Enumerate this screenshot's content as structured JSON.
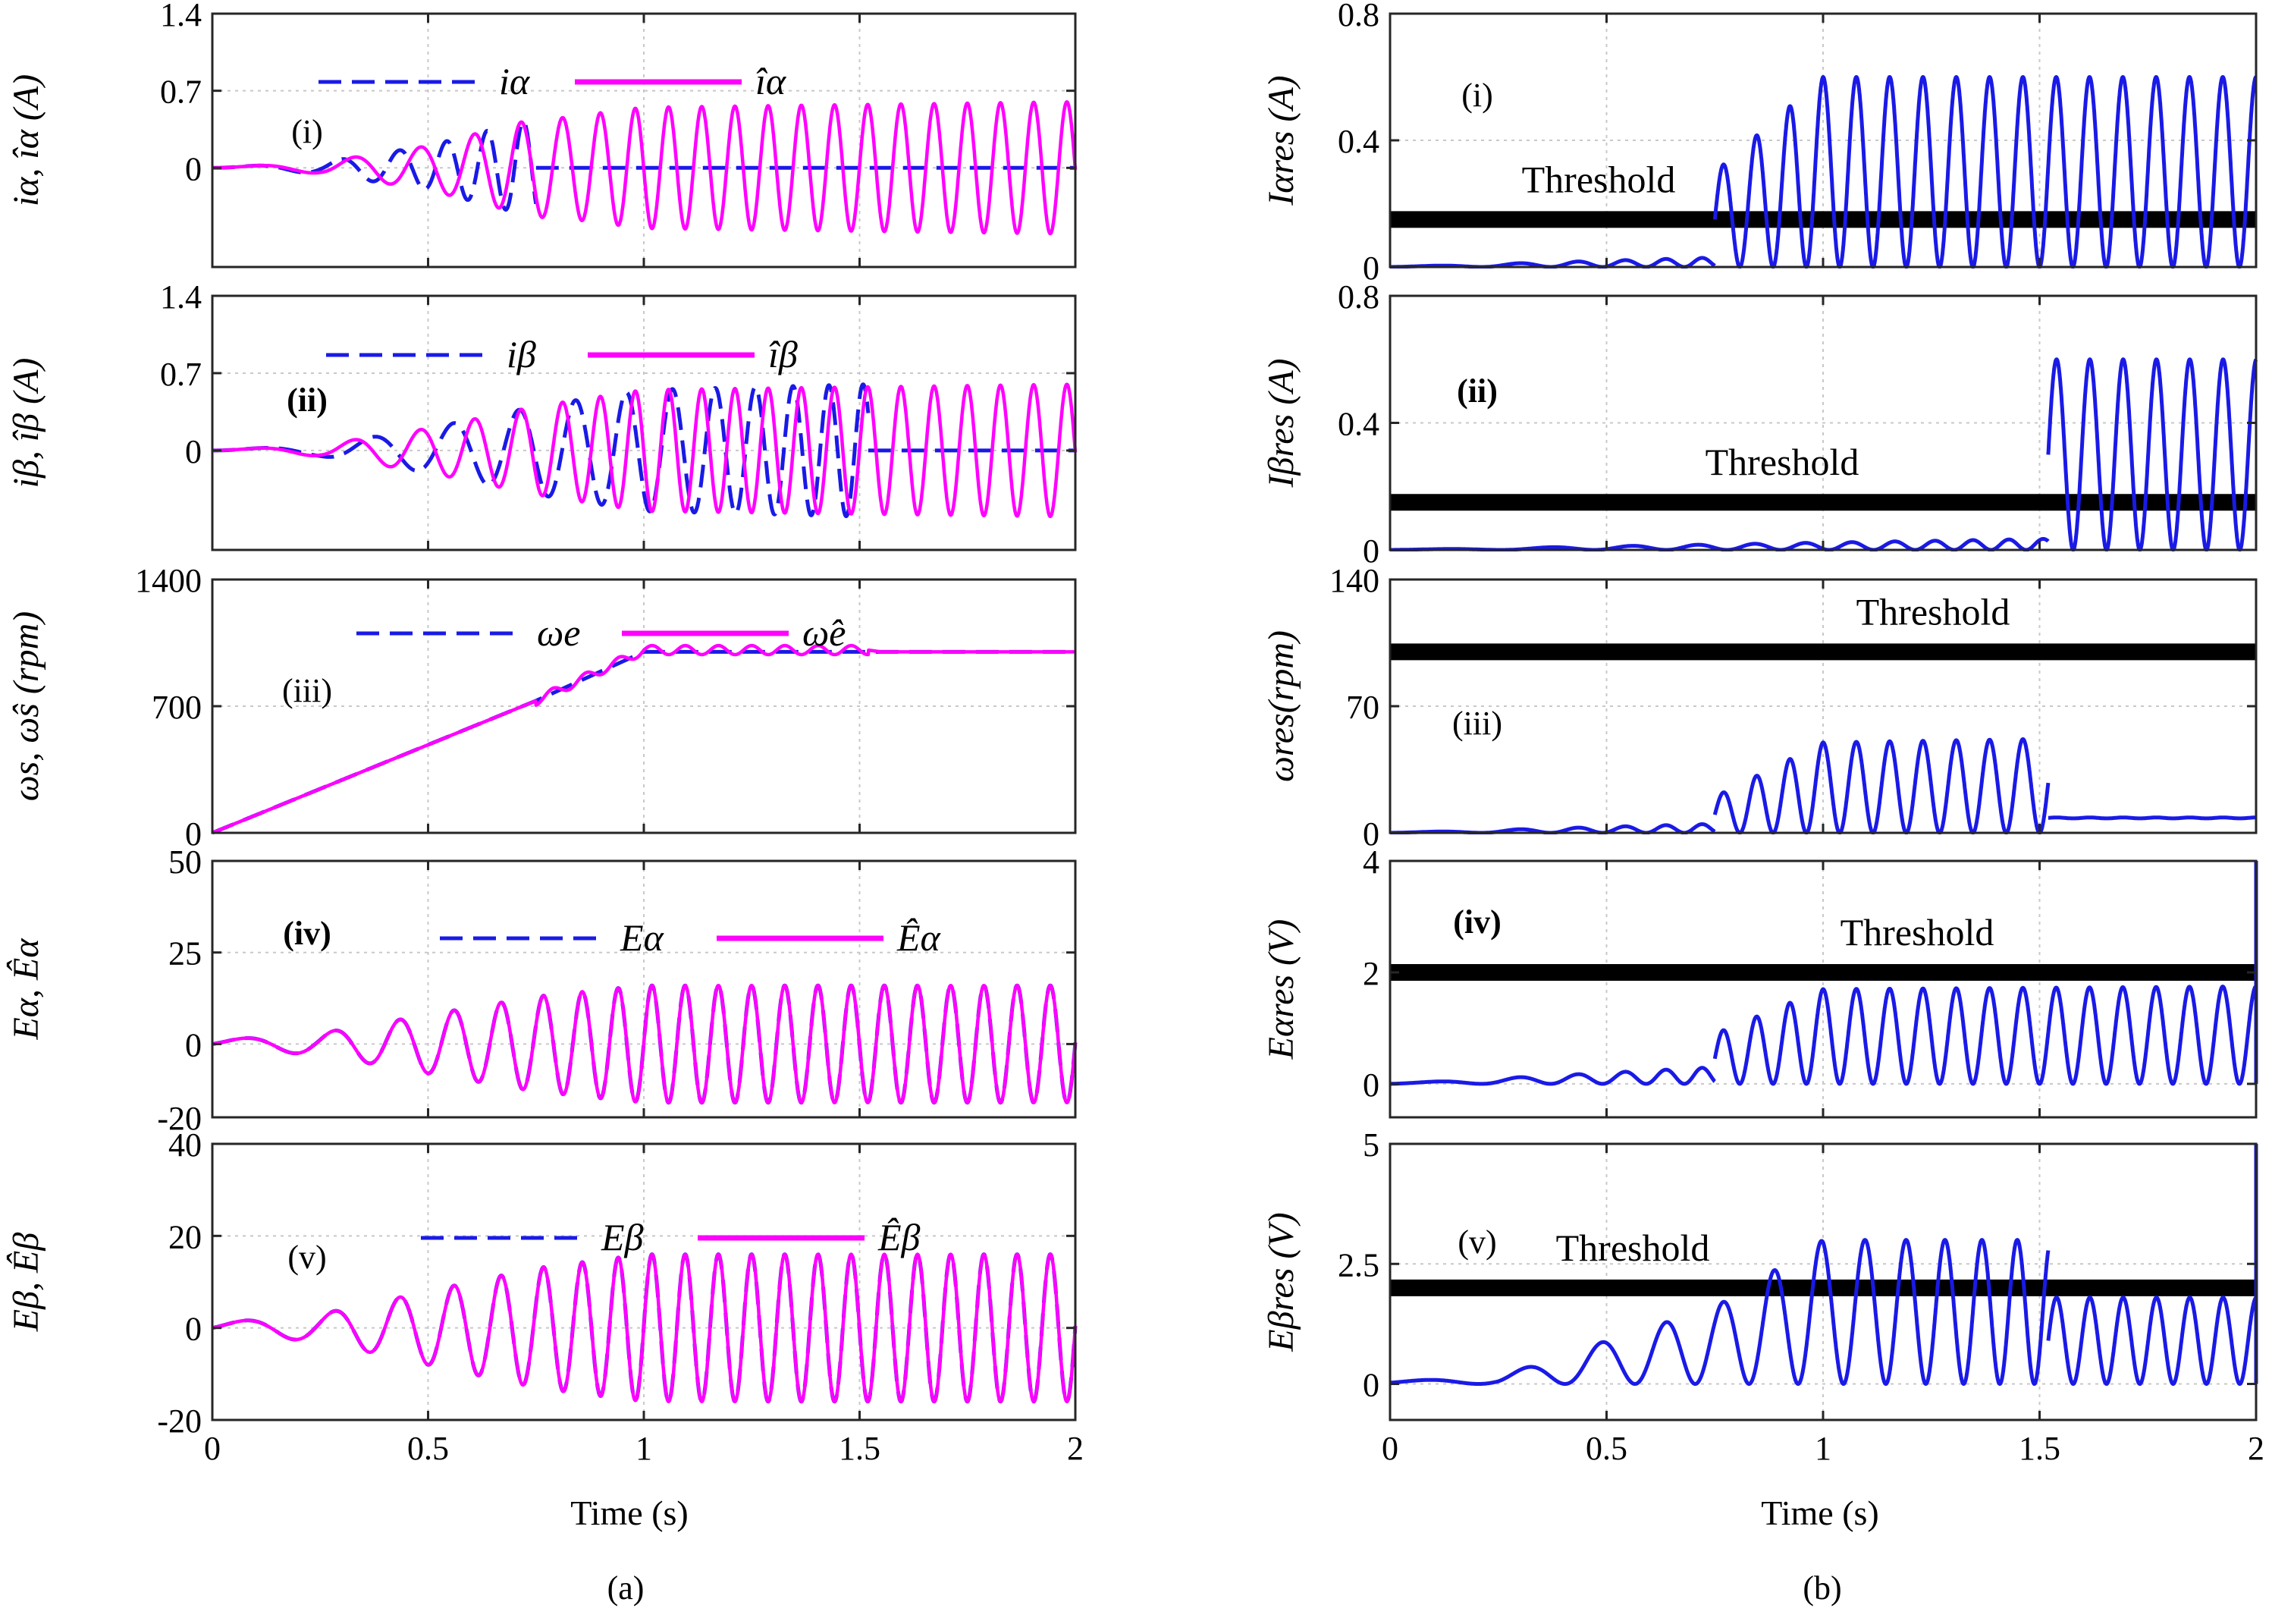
{
  "figure": {
    "caption_a": "(a)",
    "caption_b": "(b)",
    "time_label": "Time (s)",
    "x_ticks": [
      "0",
      "0.5",
      "1",
      "1.5",
      "2"
    ]
  },
  "chart_data": [
    {
      "id": "a1",
      "type": "line",
      "column": "a",
      "row": 0,
      "panel_label": "(i)",
      "ylabel": "iα, îα (A)",
      "ylim": [
        -0.9,
        1.4
      ],
      "yticks": [
        0,
        0.7,
        1.4
      ],
      "xlim": [
        0,
        2
      ],
      "grid": true,
      "legend": "top",
      "series": [
        {
          "name": "iα",
          "style": "dashed",
          "color": "#1a1ae6",
          "segments": [
            {
              "t": [
                0,
                0.75
              ],
              "amp_t": [
                0,
                0.25,
                0.5,
                0.75
              ],
              "amp": [
                0.0,
                0.05,
                0.2,
                0.45
              ],
              "freq": [
                2,
                13
              ]
            },
            {
              "t": [
                0.75,
                2.0
              ],
              "amp_t": [
                0.75,
                2.0
              ],
              "amp": [
                0.0,
                0.0
              ],
              "freq": [
                13,
                13
              ]
            }
          ]
        },
        {
          "name": "îα",
          "style": "solid",
          "color": "#ff00ff",
          "segments": [
            {
              "t": [
                0,
                2.0
              ],
              "amp_t": [
                0,
                0.25,
                0.5,
                0.75,
                0.8,
                1.0,
                2.0
              ],
              "amp": [
                0.0,
                0.05,
                0.2,
                0.45,
                0.45,
                0.55,
                0.6
              ],
              "freq": [
                2,
                13,
                13
              ]
            }
          ]
        }
      ]
    },
    {
      "id": "a2",
      "type": "line",
      "column": "a",
      "row": 1,
      "panel_label": "(ii)",
      "ylabel": "iβ, îβ (A)",
      "ylim": [
        -0.9,
        1.4
      ],
      "yticks": [
        0,
        0.7,
        1.4
      ],
      "xlim": [
        0,
        2
      ],
      "grid": true,
      "legend": "top",
      "series": [
        {
          "name": "iβ",
          "style": "dashed",
          "color": "#1a1ae6",
          "segments": [
            {
              "t": [
                0,
                1.52
              ],
              "amp_t": [
                0,
                0.25,
                0.5,
                0.75,
                1.0,
                1.52
              ],
              "amp": [
                0.0,
                0.05,
                0.2,
                0.4,
                0.55,
                0.6
              ],
              "freq": [
                2,
                13
              ]
            },
            {
              "t": [
                1.52,
                2.0
              ],
              "amp_t": [
                1.52,
                2.0
              ],
              "amp": [
                0.0,
                0.0
              ],
              "freq": [
                13,
                13
              ]
            }
          ]
        },
        {
          "name": "îβ",
          "style": "solid",
          "color": "#ff00ff",
          "segments": [
            {
              "t": [
                0,
                2.0
              ],
              "amp_t": [
                0,
                0.25,
                0.5,
                0.75,
                1.0,
                2.0
              ],
              "amp": [
                0.0,
                0.05,
                0.2,
                0.4,
                0.55,
                0.6
              ],
              "freq": [
                2,
                13,
                13
              ]
            }
          ]
        }
      ]
    },
    {
      "id": "a3",
      "type": "line",
      "column": "a",
      "row": 2,
      "panel_label": "(iii)",
      "ylabel": "ωs, ω̂s (rpm)",
      "ylim": [
        0,
        1400
      ],
      "yticks": [
        0,
        700,
        1400
      ],
      "xlim": [
        0,
        2
      ],
      "grid": true,
      "legend": "top",
      "series": [
        {
          "name": "ωe",
          "style": "dashed",
          "color": "#1a1ae6",
          "points": [
            [
              0,
              0
            ],
            [
              0.75,
              730
            ],
            [
              1.0,
              1000
            ],
            [
              2.0,
              1000
            ]
          ]
        },
        {
          "name": "ω̂e",
          "style": "solid",
          "color": "#ff00ff",
          "points": [
            [
              0,
              0
            ],
            [
              0.75,
              730
            ],
            [
              1.0,
              1010
            ],
            [
              1.52,
              1010
            ],
            [
              1.55,
              1000
            ],
            [
              2.0,
              1000
            ]
          ],
          "ripple": {
            "t": [
              0.75,
              1.52
            ],
            "amp": 25,
            "freq": 13
          }
        }
      ]
    },
    {
      "id": "a4",
      "type": "line",
      "column": "a",
      "row": 3,
      "panel_label": "(iv)",
      "ylabel": "Eα, Êα",
      "ylim": [
        -20,
        50
      ],
      "yticks": [
        -20,
        0,
        25,
        50
      ],
      "xlim": [
        0,
        2
      ],
      "grid": true,
      "legend": "top",
      "series": [
        {
          "name": "Eα",
          "style": "dashed",
          "color": "#1a1ae6",
          "segments": [
            {
              "t": [
                0,
                2.0
              ],
              "amp_t": [
                0,
                0.25,
                0.5,
                0.75,
                1.0,
                2.0
              ],
              "amp": [
                1,
                3,
                8,
                13,
                16,
                16
              ],
              "freq": [
                3,
                13,
                13
              ]
            }
          ]
        },
        {
          "name": "Êα",
          "style": "solid",
          "color": "#ff00ff",
          "segments": [
            {
              "t": [
                0,
                2.0
              ],
              "amp_t": [
                0,
                0.25,
                0.5,
                0.75,
                1.0,
                2.0
              ],
              "amp": [
                1,
                3,
                8,
                13,
                16,
                16
              ],
              "freq": [
                3,
                13,
                13
              ]
            }
          ]
        }
      ]
    },
    {
      "id": "a5",
      "type": "line",
      "column": "a",
      "row": 4,
      "panel_label": "(v)",
      "ylabel": "Eβ, Êβ",
      "ylim": [
        -20,
        40
      ],
      "yticks": [
        -20,
        0,
        20,
        40
      ],
      "xlim": [
        0,
        2
      ],
      "grid": true,
      "legend": "top",
      "series": [
        {
          "name": "Eβ",
          "style": "dashed",
          "color": "#1a1ae6",
          "segments": [
            {
              "t": [
                0,
                2.0
              ],
              "amp_t": [
                0,
                0.25,
                0.5,
                0.75,
                1.0,
                2.0
              ],
              "amp": [
                1,
                3,
                8,
                13,
                16,
                16
              ],
              "freq": [
                3,
                13,
                13
              ]
            }
          ]
        },
        {
          "name": "Êβ",
          "style": "solid",
          "color": "#ff00ff",
          "segments": [
            {
              "t": [
                0,
                2.0
              ],
              "amp_t": [
                0,
                0.25,
                0.5,
                0.75,
                1.0,
                2.0
              ],
              "amp": [
                1,
                3,
                8,
                13,
                16,
                16
              ],
              "freq": [
                3,
                13,
                13
              ]
            }
          ]
        }
      ]
    },
    {
      "id": "b1",
      "type": "line",
      "column": "b",
      "row": 0,
      "panel_label": "(i)",
      "ylabel": "Iαres (A)",
      "ylim": [
        0,
        0.8
      ],
      "yticks": [
        0,
        0.4,
        0.8
      ],
      "xlim": [
        0,
        2
      ],
      "grid": true,
      "threshold": {
        "label": "Threshold",
        "value": 0.15
      },
      "series": [
        {
          "name": "Iαres",
          "color": "#1a1ae6",
          "residual": [
            {
              "t": [
                0,
                0.75
              ],
              "base": [
                0.0,
                0.0
              ],
              "amp": [
                0.0,
                0.03
              ],
              "freq": [
                2,
                13
              ]
            },
            {
              "t": [
                0.75,
                2.0
              ],
              "base": [
                0.0,
                0.0
              ],
              "amp_t": [
                0.75,
                1.0,
                2.0
              ],
              "amp": [
                0.3,
                0.6,
                0.6
              ],
              "freq": [
                13,
                13
              ],
              "rectified": true
            }
          ]
        }
      ]
    },
    {
      "id": "b2",
      "type": "line",
      "column": "b",
      "row": 1,
      "panel_label": "(ii)",
      "ylabel": "Iβres (A)",
      "ylim": [
        0,
        0.8
      ],
      "yticks": [
        0,
        0.4,
        0.8
      ],
      "xlim": [
        0,
        2
      ],
      "grid": true,
      "threshold": {
        "label": "Threshold",
        "value": 0.15
      },
      "series": [
        {
          "name": "Iβres",
          "color": "#1a1ae6",
          "residual": [
            {
              "t": [
                0,
                1.52
              ],
              "base": [
                0.0,
                0.0
              ],
              "amp": [
                0.0,
                0.035
              ],
              "freq": [
                2,
                13
              ]
            },
            {
              "t": [
                1.52,
                2.0
              ],
              "base": [
                0.0,
                0.0
              ],
              "amp_t": [
                1.52,
                2.0
              ],
              "amp": [
                0.6,
                0.6
              ],
              "freq": [
                13,
                13
              ],
              "rectified": true
            }
          ]
        }
      ]
    },
    {
      "id": "b3",
      "type": "line",
      "column": "b",
      "row": 2,
      "panel_label": "(iii)",
      "ylabel": "ωres(rpm)",
      "ylim": [
        0,
        140
      ],
      "yticks": [
        0,
        70,
        140
      ],
      "xlim": [
        0,
        2
      ],
      "grid": true,
      "threshold": {
        "label": "Threshold",
        "value": 100
      },
      "series": [
        {
          "name": "ωres",
          "color": "#1a1ae6",
          "residual": [
            {
              "t": [
                0,
                0.75
              ],
              "base": [
                0.0,
                0.0
              ],
              "amp": [
                0.0,
                5
              ],
              "freq": [
                2,
                13
              ]
            },
            {
              "t": [
                0.75,
                1.52
              ],
              "base": [
                0.0,
                0.0
              ],
              "amp_t": [
                0.75,
                1.0,
                1.52
              ],
              "amp": [
                20,
                50,
                52
              ],
              "freq": [
                13,
                13
              ],
              "rectified": true
            },
            {
              "t": [
                1.52,
                2.0
              ],
              "base": [
                8,
                8
              ],
              "amp": [
                0.5,
                0.5
              ],
              "freq": [
                13,
                13
              ]
            }
          ]
        }
      ]
    },
    {
      "id": "b4",
      "type": "line",
      "column": "b",
      "row": 3,
      "panel_label": "(iv)",
      "ylabel": "Eαres (V)",
      "ylim": [
        -0.6,
        4
      ],
      "yticks": [
        0,
        2,
        4
      ],
      "xlim": [
        0,
        2
      ],
      "grid": true,
      "threshold": {
        "label": "Threshold",
        "value": 2
      },
      "series": [
        {
          "name": "Eαres",
          "color": "#1a1ae6",
          "residual": [
            {
              "t": [
                0,
                0.75
              ],
              "base": [
                0.0,
                0.0
              ],
              "amp": [
                0.0,
                0.3
              ],
              "freq": [
                2,
                13
              ]
            },
            {
              "t": [
                0.75,
                2.0
              ],
              "base": [
                0.0,
                0.0
              ],
              "amp_t": [
                0.75,
                1.0,
                2.0
              ],
              "amp": [
                0.9,
                1.7,
                1.75
              ],
              "freq": [
                13,
                13
              ],
              "rectified": true
            }
          ],
          "spike": {
            "t": 2.0,
            "value": 4
          }
        }
      ]
    },
    {
      "id": "b5",
      "type": "line",
      "column": "b",
      "row": 4,
      "panel_label": "(v)",
      "ylabel": "Eβres (V)",
      "ylim": [
        -0.75,
        5
      ],
      "yticks": [
        0,
        2.5,
        5
      ],
      "xlim": [
        0,
        2
      ],
      "grid": true,
      "threshold": {
        "label": "Threshold",
        "value": 2
      },
      "series": [
        {
          "name": "Eβres",
          "color": "#1a1ae6",
          "residual": [
            {
              "t": [
                0,
                1.52
              ],
              "base": [
                0.0,
                0.0
              ],
              "amp_t": [
                0,
                0.25,
                0.5,
                0.75,
                1.0,
                1.52
              ],
              "amp": [
                0.05,
                0.15,
                0.9,
                1.6,
                3.0,
                3.0
              ],
              "freq": [
                3,
                13
              ],
              "rectified": true
            },
            {
              "t": [
                1.52,
                2.0
              ],
              "base": [
                0.0,
                0.0
              ],
              "amp_t": [
                1.52,
                2.0
              ],
              "amp": [
                1.8,
                1.8
              ],
              "freq": [
                13,
                13
              ],
              "rectified": true
            }
          ],
          "spike": {
            "t": 2.0,
            "value": 5
          }
        }
      ]
    }
  ]
}
